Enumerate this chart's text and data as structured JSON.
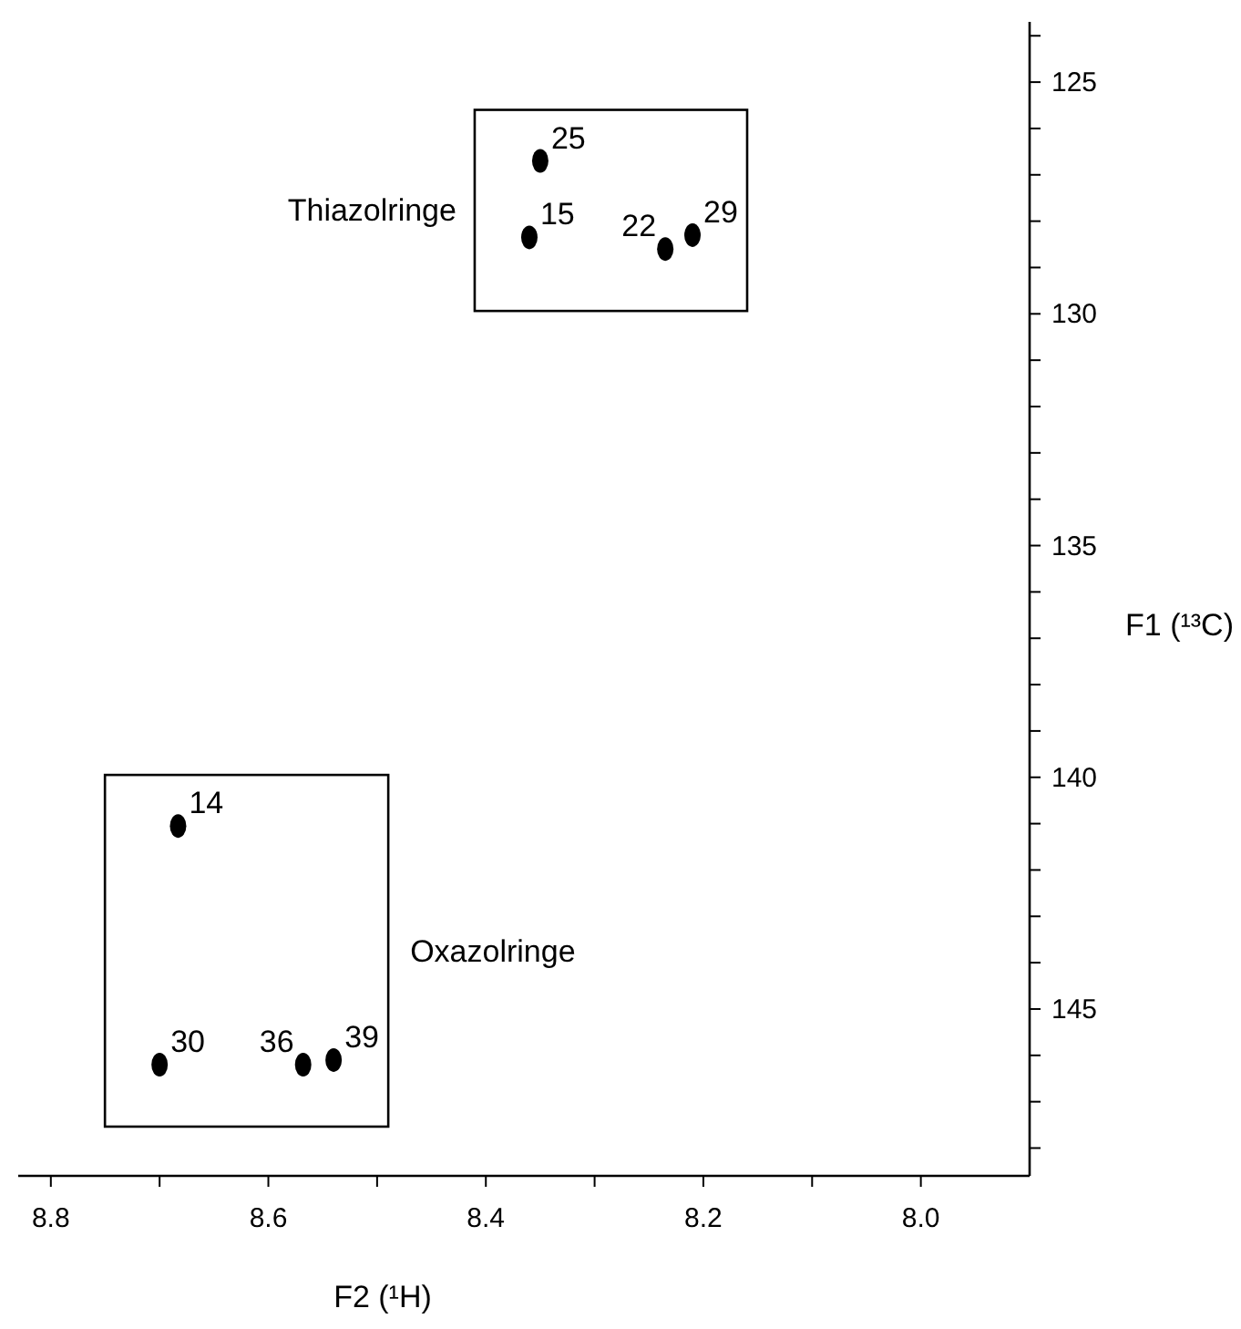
{
  "chart_data": {
    "type": "scatter",
    "xlabel": "F2 (¹H)",
    "ylabel": "F1 (¹³C)",
    "xlim": [
      8.83,
      7.9
    ],
    "ylim": [
      148.6,
      123.7
    ],
    "xticks": [
      8.8,
      {
        "value": 8.7,
        "label": null
      },
      8.6,
      {
        "value": 8.5,
        "label": null
      },
      8.4,
      {
        "value": 8.3,
        "label": null
      },
      8.2,
      {
        "value": 8.1,
        "label": null
      },
      {
        "value": 8.0,
        "label": "8.0"
      }
    ],
    "yticks": [
      {
        "value": 124,
        "label": null
      },
      125,
      {
        "value": 126,
        "label": null
      },
      {
        "value": 127,
        "label": null
      },
      {
        "value": 128,
        "label": null
      },
      {
        "value": 129,
        "label": null
      },
      130,
      {
        "value": 131,
        "label": null
      },
      {
        "value": 132,
        "label": null
      },
      {
        "value": 133,
        "label": null
      },
      {
        "value": 134,
        "label": null
      },
      135,
      {
        "value": 136,
        "label": null
      },
      {
        "value": 137,
        "label": null
      },
      {
        "value": 138,
        "label": null
      },
      {
        "value": 139,
        "label": null
      },
      140,
      {
        "value": 141,
        "label": null
      },
      {
        "value": 142,
        "label": null
      },
      {
        "value": 143,
        "label": null
      },
      {
        "value": 144,
        "label": null
      },
      145,
      {
        "value": 146,
        "label": null
      },
      {
        "value": 147,
        "label": null
      },
      {
        "value": 148,
        "label": null
      }
    ],
    "grid": false,
    "marker": "circle",
    "series": [
      {
        "name": "25",
        "color": "#000000",
        "x": [
          8.35
        ],
        "values": [
          126.7
        ]
      },
      {
        "name": "15",
        "color": "#000000",
        "x": [
          8.36
        ],
        "values": [
          128.35
        ]
      },
      {
        "name": "22",
        "color": "#000000",
        "x": [
          8.235
        ],
        "values": [
          128.6
        ]
      },
      {
        "name": "29",
        "color": "#000000",
        "x": [
          8.21
        ],
        "values": [
          128.3
        ]
      },
      {
        "name": "14",
        "color": "#000000",
        "x": [
          8.683
        ],
        "values": [
          141.05
        ]
      },
      {
        "name": "30",
        "color": "#000000",
        "x": [
          8.7
        ],
        "values": [
          146.2
        ]
      },
      {
        "name": "36",
        "color": "#000000",
        "x": [
          8.568
        ],
        "values": [
          146.2
        ]
      },
      {
        "name": "39",
        "color": "#000000",
        "x": [
          8.54
        ],
        "values": [
          146.1
        ]
      }
    ],
    "annotations": [
      "Thiazolringe",
      "Oxazolringe"
    ]
  }
}
